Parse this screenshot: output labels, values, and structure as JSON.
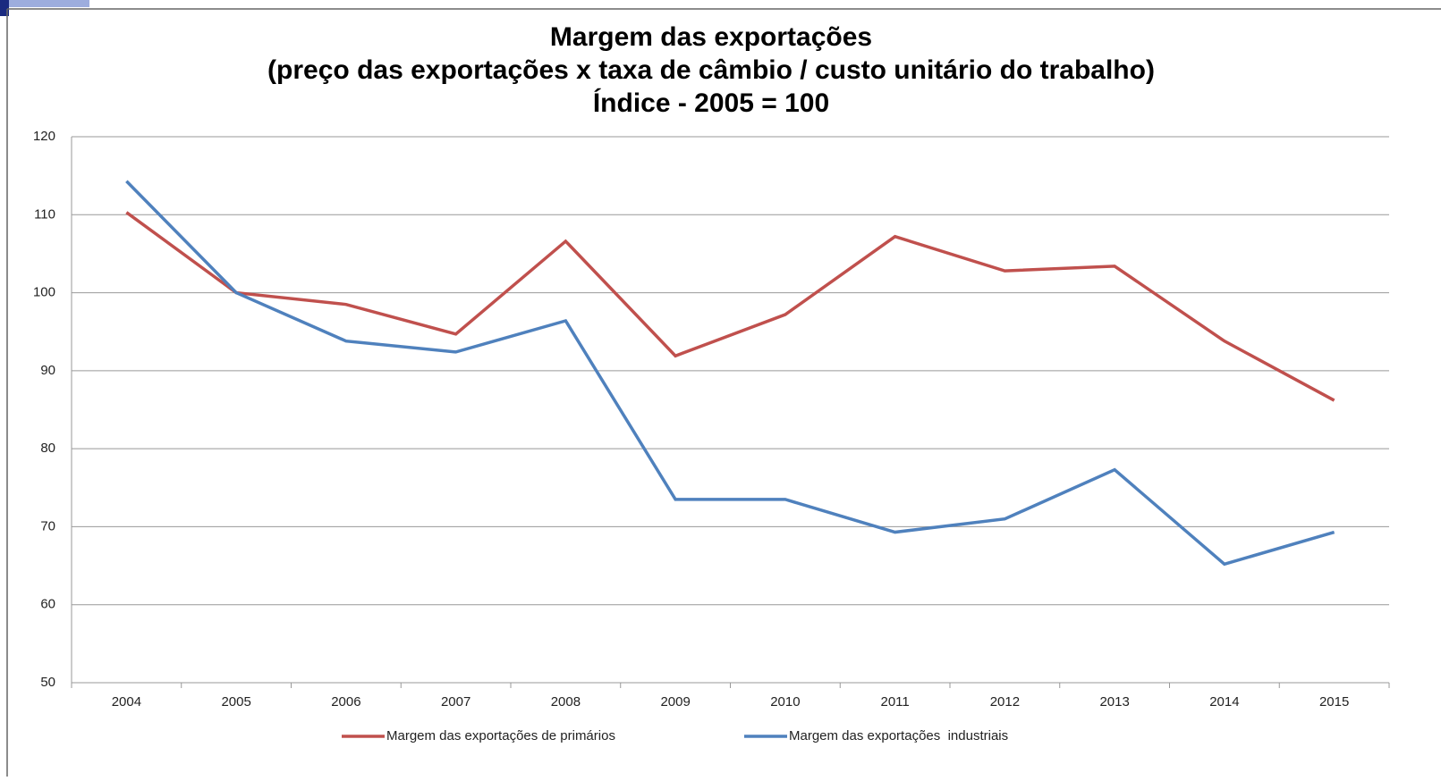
{
  "chart_data": {
    "type": "line",
    "title": [
      "Margem das exportações",
      "(preço das exportações x taxa de câmbio / custo unitário do trabalho)",
      "Índice - 2005 = 100"
    ],
    "categories": [
      "2004",
      "2005",
      "2006",
      "2007",
      "2008",
      "2009",
      "2010",
      "2011",
      "2012",
      "2013",
      "2014",
      "2015"
    ],
    "series": [
      {
        "name": "Margem das exportações de primários",
        "color": "#c0504d",
        "values": [
          110.3,
          100,
          98.5,
          94.7,
          106.6,
          91.9,
          97.2,
          107.2,
          102.8,
          103.4,
          93.8,
          86.2
        ]
      },
      {
        "name": "Margem das exportações  industriais",
        "color": "#4f81bd",
        "values": [
          114.3,
          100,
          93.8,
          92.4,
          96.4,
          73.5,
          73.5,
          69.3,
          71.0,
          77.3,
          65.2,
          69.3
        ]
      }
    ],
    "ylim": [
      50,
      120
    ],
    "yticks": [
      50,
      60,
      70,
      80,
      90,
      100,
      110,
      120
    ],
    "grid": true,
    "legend": "bottom"
  }
}
